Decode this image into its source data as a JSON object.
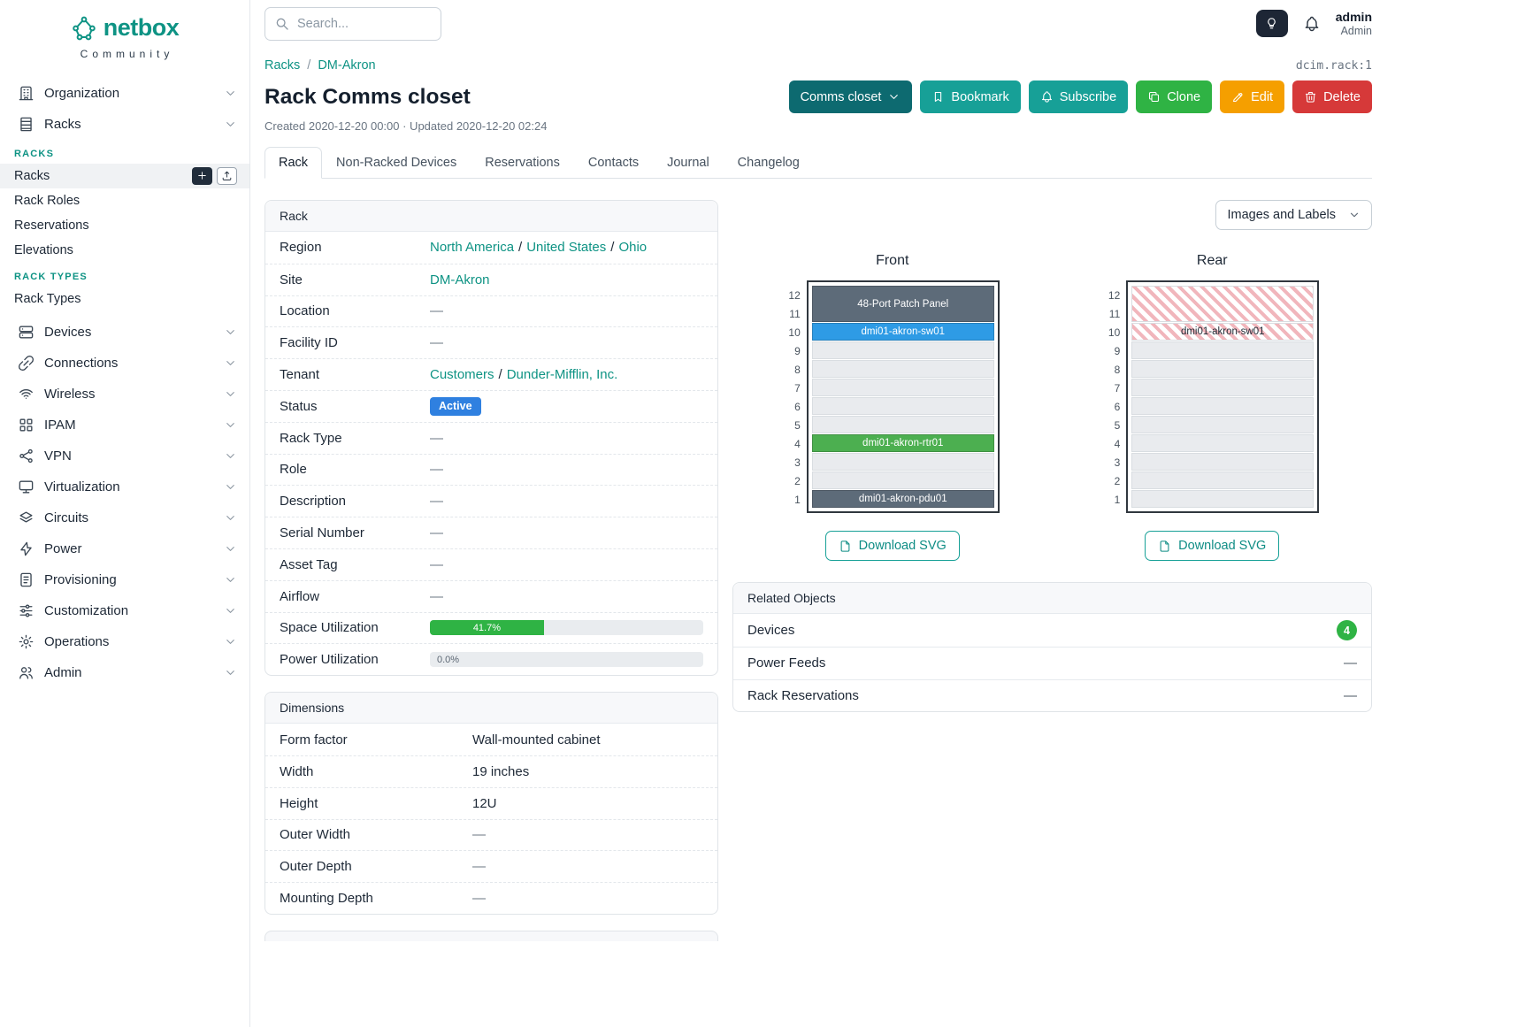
{
  "brand": {
    "name": "netbox",
    "tagline": "Community"
  },
  "topbar": {
    "search_placeholder": "Search...",
    "user": {
      "name": "admin",
      "role": "Admin"
    }
  },
  "colors": {
    "brand": "#0e9384",
    "link": "#0e9384",
    "btn_dark_teal": "#0d6a70",
    "btn_teal": "#17a097",
    "btn_green": "#2fb344",
    "btn_orange": "#f59f00",
    "btn_red": "#d63939",
    "badge_active": "#2f80e0",
    "progress_green": "#2fb344",
    "count_badge": "#2fb344",
    "unit_dark": "#5d6b79",
    "unit_blue": "#2e9be5",
    "unit_green": "#4caf50"
  },
  "sidebar": {
    "items": [
      {
        "label": "Organization",
        "icon": "building"
      },
      {
        "label": "Racks",
        "icon": "rack",
        "expanded": true,
        "groups": [
          {
            "header": "RACKS",
            "items": [
              {
                "label": "Racks",
                "active": true,
                "buttons": [
                  "add",
                  "import"
                ]
              },
              {
                "label": "Rack Roles"
              },
              {
                "label": "Reservations"
              },
              {
                "label": "Elevations"
              }
            ]
          },
          {
            "header": "RACK TYPES",
            "items": [
              {
                "label": "Rack Types"
              }
            ]
          }
        ]
      },
      {
        "label": "Devices",
        "icon": "devices"
      },
      {
        "label": "Connections",
        "icon": "connections"
      },
      {
        "label": "Wireless",
        "icon": "wireless"
      },
      {
        "label": "IPAM",
        "icon": "ipam"
      },
      {
        "label": "VPN",
        "icon": "vpn"
      },
      {
        "label": "Virtualization",
        "icon": "virtualization"
      },
      {
        "label": "Circuits",
        "icon": "circuits"
      },
      {
        "label": "Power",
        "icon": "power"
      },
      {
        "label": "Provisioning",
        "icon": "provisioning"
      },
      {
        "label": "Customization",
        "icon": "customization"
      },
      {
        "label": "Operations",
        "icon": "operations"
      },
      {
        "label": "Admin",
        "icon": "admin"
      }
    ]
  },
  "page": {
    "breadcrumb": [
      {
        "label": "Racks"
      },
      {
        "label": "DM-Akron"
      }
    ],
    "object_ref": "dcim.rack:1",
    "title": "Rack Comms closet",
    "meta": "Created 2020-12-20 00:00 · Updated 2020-12-20 02:24",
    "actions": [
      {
        "label": "Comms closet",
        "color_key": "btn_dark_teal",
        "chevron": true,
        "name": "rack-selector-dropdown-button"
      },
      {
        "label": "Bookmark",
        "icon": "bookmark",
        "color_key": "btn_teal",
        "name": "bookmark-button"
      },
      {
        "label": "Subscribe",
        "icon": "bell",
        "color_key": "btn_teal",
        "name": "subscribe-button"
      },
      {
        "label": "Clone",
        "icon": "copy",
        "color_key": "btn_green",
        "name": "clone-button"
      },
      {
        "label": "Edit",
        "icon": "pencil",
        "color_key": "btn_orange",
        "name": "edit-button"
      },
      {
        "label": "Delete",
        "icon": "trash",
        "color_key": "btn_red",
        "name": "delete-button"
      }
    ],
    "tabs": [
      {
        "label": "Rack",
        "active": true
      },
      {
        "label": "Non-Racked Devices"
      },
      {
        "label": "Reservations"
      },
      {
        "label": "Contacts"
      },
      {
        "label": "Journal"
      },
      {
        "label": "Changelog"
      }
    ]
  },
  "rack_card": {
    "title": "Rack",
    "fields": [
      {
        "label": "Region",
        "type": "links",
        "parts": [
          "North America",
          "United States",
          "Ohio"
        ]
      },
      {
        "label": "Site",
        "type": "links",
        "parts": [
          "DM-Akron"
        ]
      },
      {
        "label": "Location",
        "type": "dash",
        "value": "—"
      },
      {
        "label": "Facility ID",
        "type": "dash",
        "value": "—"
      },
      {
        "label": "Tenant",
        "type": "links",
        "parts": [
          "Customers",
          "Dunder-Mifflin, Inc."
        ]
      },
      {
        "label": "Status",
        "type": "badge",
        "value": "Active"
      },
      {
        "label": "Rack Type",
        "type": "dash",
        "value": "—"
      },
      {
        "label": "Role",
        "type": "dash",
        "value": "—"
      },
      {
        "label": "Description",
        "type": "dash",
        "value": "—"
      },
      {
        "label": "Serial Number",
        "type": "dash",
        "value": "—"
      },
      {
        "label": "Asset Tag",
        "type": "dash",
        "value": "—"
      },
      {
        "label": "Airflow",
        "type": "dash",
        "value": "—"
      },
      {
        "label": "Space Utilization",
        "type": "progress",
        "percent": 41.7,
        "text": "41.7%"
      },
      {
        "label": "Power Utilization",
        "type": "progress",
        "percent": 0,
        "text": "0.0%"
      }
    ]
  },
  "dimensions_card": {
    "title": "Dimensions",
    "fields": [
      {
        "label": "Form factor",
        "value": "Wall-mounted cabinet"
      },
      {
        "label": "Width",
        "value": "19 inches"
      },
      {
        "label": "Height",
        "value": "12U"
      },
      {
        "label": "Outer Width",
        "value": "—",
        "muted": true
      },
      {
        "label": "Outer Depth",
        "value": "—",
        "muted": true
      },
      {
        "label": "Mounting Depth",
        "value": "—",
        "muted": true
      }
    ]
  },
  "elevations": {
    "toolbar_button": "Images and Labels",
    "download_label": "Download SVG",
    "unit_count": 12,
    "views": [
      {
        "title": "Front",
        "units": [
          {
            "span": 2,
            "kind": "device",
            "color": "dark",
            "label": "48-Port Patch Panel"
          },
          {
            "span": 1,
            "kind": "device",
            "color": "blue",
            "label": "dmi01-akron-sw01"
          },
          {
            "span": 1,
            "kind": "empty"
          },
          {
            "span": 1,
            "kind": "empty"
          },
          {
            "span": 1,
            "kind": "empty"
          },
          {
            "span": 1,
            "kind": "empty"
          },
          {
            "span": 1,
            "kind": "empty"
          },
          {
            "span": 1,
            "kind": "device",
            "color": "green",
            "label": "dmi01-akron-rtr01"
          },
          {
            "span": 1,
            "kind": "empty"
          },
          {
            "span": 1,
            "kind": "empty"
          },
          {
            "span": 1,
            "kind": "device",
            "color": "dark",
            "label": "dmi01-akron-pdu01"
          }
        ]
      },
      {
        "title": "Rear",
        "units": [
          {
            "span": 2,
            "kind": "ghost"
          },
          {
            "span": 1,
            "kind": "ghost",
            "label": "dmi01-akron-sw01"
          },
          {
            "span": 1,
            "kind": "empty"
          },
          {
            "span": 1,
            "kind": "empty"
          },
          {
            "span": 1,
            "kind": "empty"
          },
          {
            "span": 1,
            "kind": "empty"
          },
          {
            "span": 1,
            "kind": "empty"
          },
          {
            "span": 1,
            "kind": "empty"
          },
          {
            "span": 1,
            "kind": "empty"
          },
          {
            "span": 1,
            "kind": "empty"
          },
          {
            "span": 1,
            "kind": "empty"
          }
        ]
      }
    ]
  },
  "related_card": {
    "title": "Related Objects",
    "rows": [
      {
        "label": "Devices",
        "badge": "4"
      },
      {
        "label": "Power Feeds",
        "value": "—"
      },
      {
        "label": "Rack Reservations",
        "value": "—"
      }
    ]
  }
}
